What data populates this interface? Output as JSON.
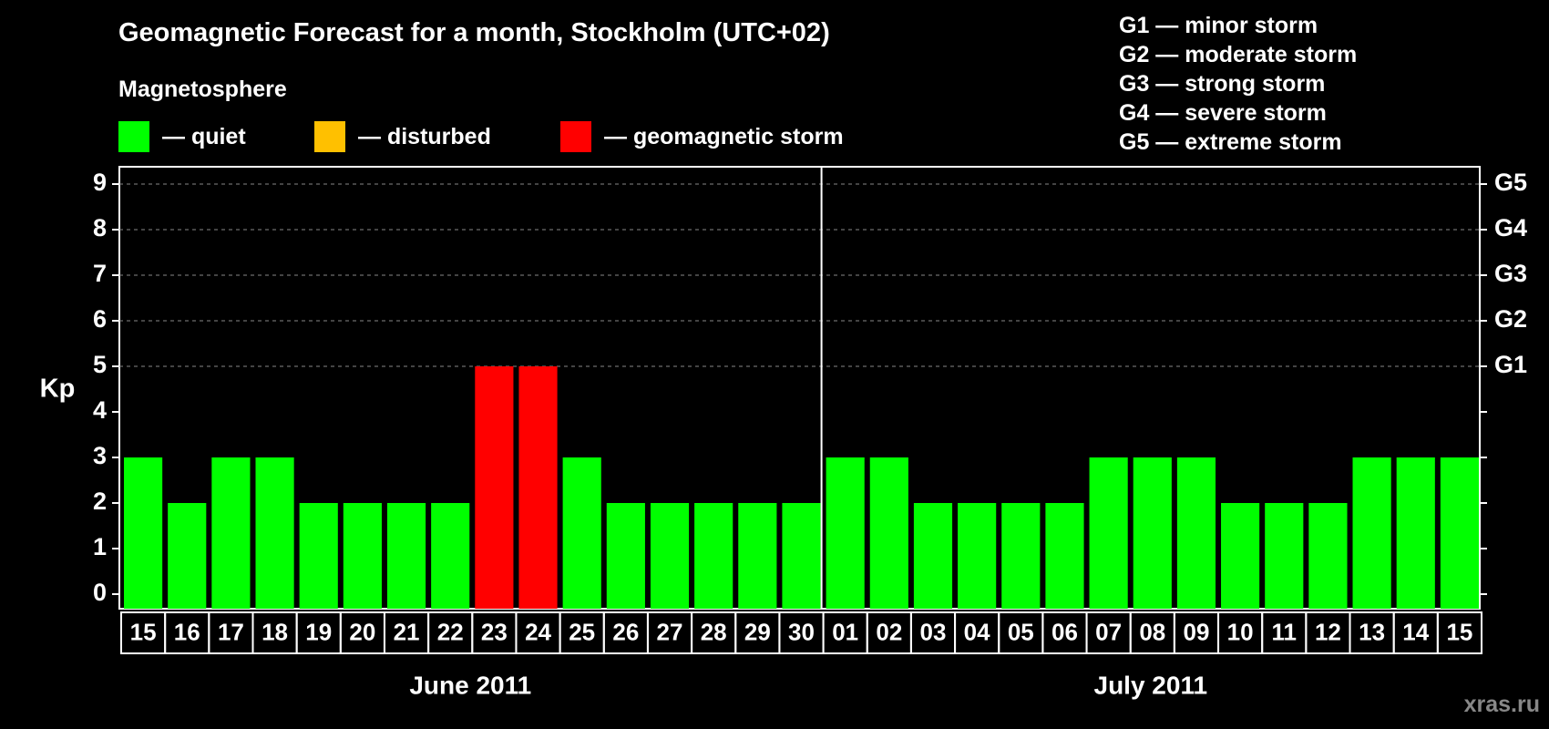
{
  "title": "Geomagnetic Forecast for a month, Stockholm (UTC+02)",
  "subtitle": "Magnetosphere",
  "legend": [
    {
      "label": "— quiet",
      "color": "#00ff00"
    },
    {
      "label": "— disturbed",
      "color": "#ffc000"
    },
    {
      "label": "— geomagnetic storm",
      "color": "#ff0000"
    }
  ],
  "storm_levels": [
    "G1 — minor storm",
    "G2 — moderate storm",
    "G3 — strong storm",
    "G4 — severe storm",
    "G5 — extreme storm"
  ],
  "watermark": "xras.ru",
  "chart_data": {
    "type": "bar",
    "title": "Geomagnetic Forecast for a month, Stockholm (UTC+02)",
    "ylabel": "Kp",
    "ylim": [
      0,
      9
    ],
    "yticks": [
      "0",
      "1",
      "2",
      "3",
      "4",
      "5",
      "6",
      "7",
      "8",
      "9"
    ],
    "right_ticks": [
      {
        "value": 5,
        "label": "G1"
      },
      {
        "value": 6,
        "label": "G2"
      },
      {
        "value": 7,
        "label": "G3"
      },
      {
        "value": 8,
        "label": "G4"
      },
      {
        "value": 9,
        "label": "G5"
      }
    ],
    "categories": [
      "15",
      "16",
      "17",
      "18",
      "19",
      "20",
      "21",
      "22",
      "23",
      "24",
      "25",
      "26",
      "27",
      "28",
      "29",
      "30",
      "01",
      "02",
      "03",
      "04",
      "05",
      "06",
      "07",
      "08",
      "09",
      "10",
      "11",
      "12",
      "13",
      "14",
      "15"
    ],
    "values": [
      3,
      2,
      3,
      3,
      2,
      2,
      2,
      2,
      5,
      5,
      3,
      2,
      2,
      2,
      2,
      2,
      3,
      3,
      2,
      2,
      2,
      2,
      3,
      3,
      3,
      2,
      2,
      2,
      3,
      3,
      3
    ],
    "month_groups": [
      {
        "label": "June 2011",
        "count": 16
      },
      {
        "label": "July 2011",
        "count": 15
      }
    ],
    "colors": {
      "quiet": "#00ff00",
      "disturbed": "#ffc000",
      "storm": "#ff0000"
    },
    "grid": true
  }
}
